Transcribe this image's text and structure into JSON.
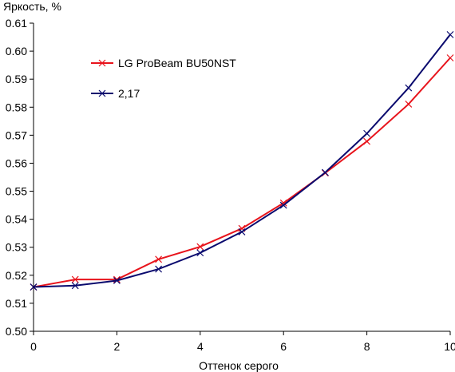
{
  "chart_data": {
    "type": "line",
    "title": "",
    "ylabel": "Яркость, %",
    "xlabel": "Оттенок серого",
    "xlim": [
      0,
      10
    ],
    "ylim": [
      0.5,
      0.61
    ],
    "x_ticks": [
      0,
      2,
      4,
      6,
      8,
      10
    ],
    "x_tick_labels": [
      "0",
      "2",
      "4",
      "6",
      "8",
      "10"
    ],
    "y_ticks": [
      0.5,
      0.51,
      0.52,
      0.53,
      0.54,
      0.55,
      0.56,
      0.57,
      0.58,
      0.59,
      0.6,
      0.61
    ],
    "y_tick_labels": [
      "0.50",
      "0.51",
      "0.52",
      "0.53",
      "0.54",
      "0.55",
      "0.56",
      "0.57",
      "0.58",
      "0.59",
      "0.60",
      "0.61"
    ],
    "grid": false,
    "legend_position": "top-left",
    "x": [
      0,
      1,
      2,
      3,
      4,
      5,
      6,
      7,
      8,
      9,
      10
    ],
    "series": [
      {
        "name": "LG ProBeam BU50NST",
        "color": "#e8141c",
        "marker": "x",
        "values": [
          0.5158,
          0.5185,
          0.5185,
          0.5257,
          0.5302,
          0.5367,
          0.5458,
          0.5565,
          0.5678,
          0.5811,
          0.5976
        ]
      },
      {
        "name": "2,17",
        "color": "#0a0a6e",
        "marker": "x",
        "values": [
          0.5158,
          0.5163,
          0.5181,
          0.5222,
          0.528,
          0.5355,
          0.545,
          0.5567,
          0.5706,
          0.5869,
          0.6059
        ]
      }
    ]
  }
}
